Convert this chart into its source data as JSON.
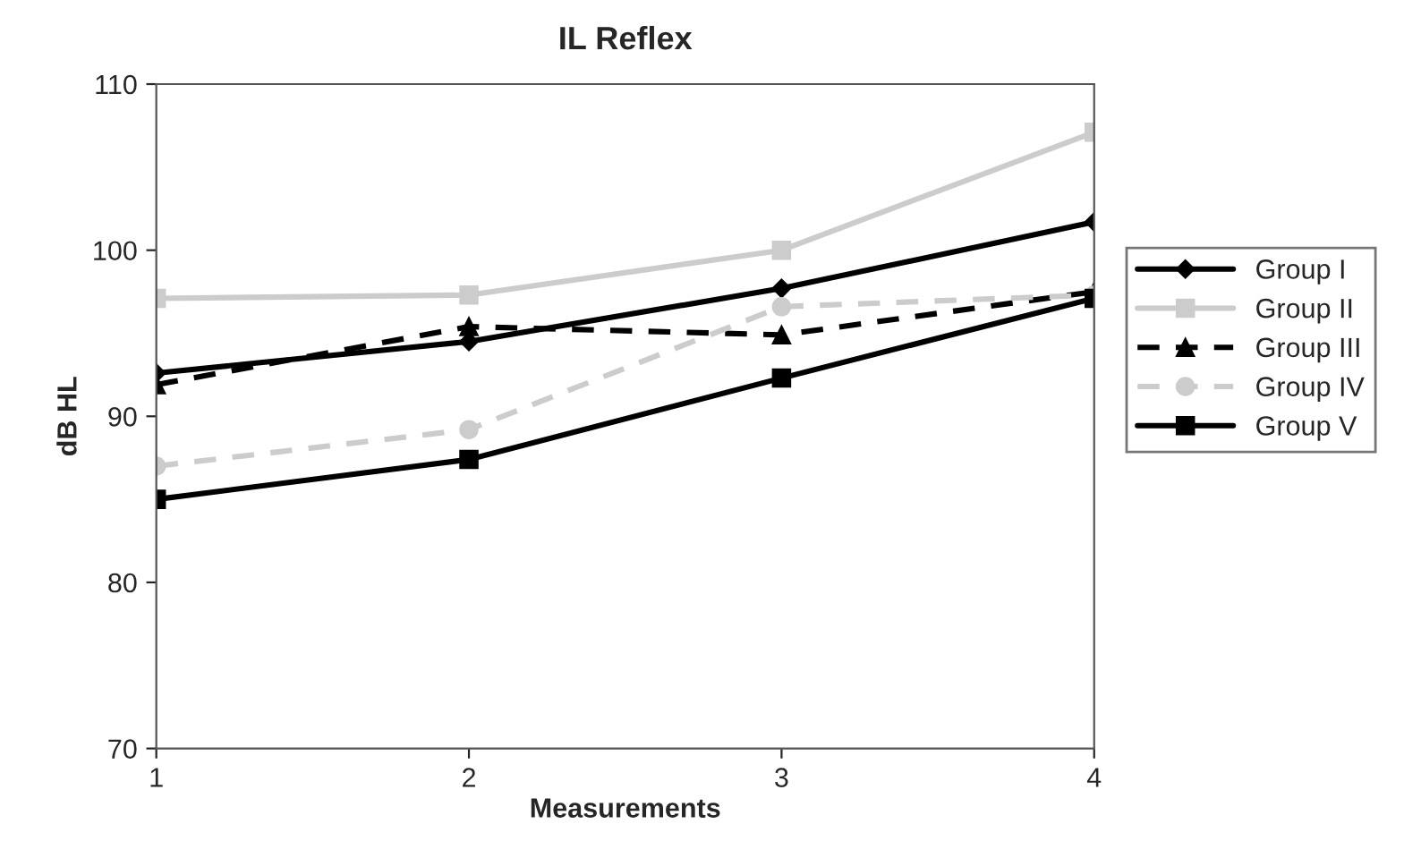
{
  "chart_data": {
    "type": "line",
    "title": "IL Reflex",
    "xlabel": "Measurements",
    "ylabel": "dB HL",
    "x": [
      1,
      2,
      3,
      4
    ],
    "xlim": [
      1,
      4
    ],
    "xticks": [
      1,
      2,
      3,
      4
    ],
    "ylim": [
      70,
      110
    ],
    "yticks": [
      70,
      80,
      90,
      100,
      110
    ],
    "grid": false,
    "legend": "right",
    "series": [
      {
        "name": "Group I",
        "color": "#000000",
        "marker": "diamond",
        "line_style": "solid",
        "values": [
          92.6,
          94.5,
          97.7,
          101.7
        ]
      },
      {
        "name": "Group II",
        "color": "#cccccc",
        "marker": "square",
        "line_style": "solid",
        "values": [
          97.1,
          97.3,
          100.0,
          107.1
        ]
      },
      {
        "name": "Group III",
        "color": "#000000",
        "marker": "triangle",
        "line_style": "dashed",
        "values": [
          91.9,
          95.4,
          94.9,
          97.5
        ]
      },
      {
        "name": "Group IV",
        "color": "#cccccc",
        "marker": "circle",
        "line_style": "dashed",
        "values": [
          87.0,
          89.2,
          96.6,
          97.3
        ]
      },
      {
        "name": "Group V",
        "color": "#000000",
        "marker": "square",
        "line_style": "solid",
        "values": [
          85.0,
          87.4,
          92.3,
          97.1
        ]
      }
    ]
  }
}
